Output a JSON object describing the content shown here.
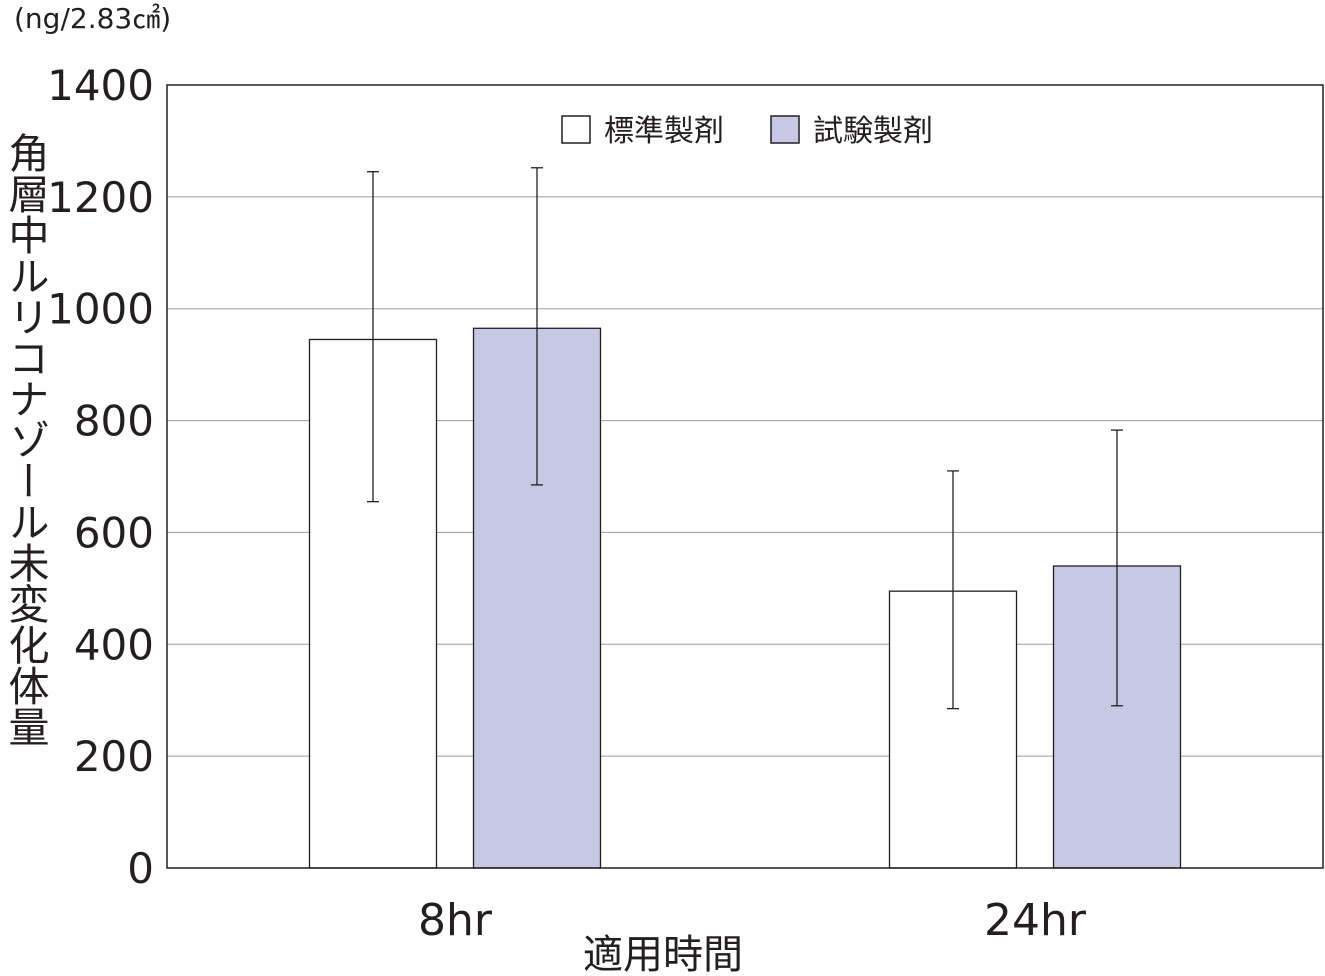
{
  "chart_data": {
    "type": "bar",
    "unit_label": "(ng/2.83㎠)",
    "ylabel": "角層中ルリコナゾール未変化体量",
    "xlabel": "適用時間",
    "categories": [
      "8hr",
      "24hr"
    ],
    "ylim": [
      0,
      1400
    ],
    "yticks": [
      0,
      200,
      400,
      600,
      800,
      1000,
      1200,
      1400
    ],
    "grid": true,
    "legend_position": "top-center",
    "series": [
      {
        "name": "標準製剤",
        "color": "#ffffff",
        "values": [
          945,
          495
        ],
        "error_low": [
          655,
          285
        ],
        "error_high": [
          1245,
          710
        ]
      },
      {
        "name": "試験製剤",
        "color": "#c7c8e3",
        "values": [
          965,
          540
        ],
        "error_low": [
          685,
          290
        ],
        "error_high": [
          1252,
          783
        ]
      }
    ]
  }
}
